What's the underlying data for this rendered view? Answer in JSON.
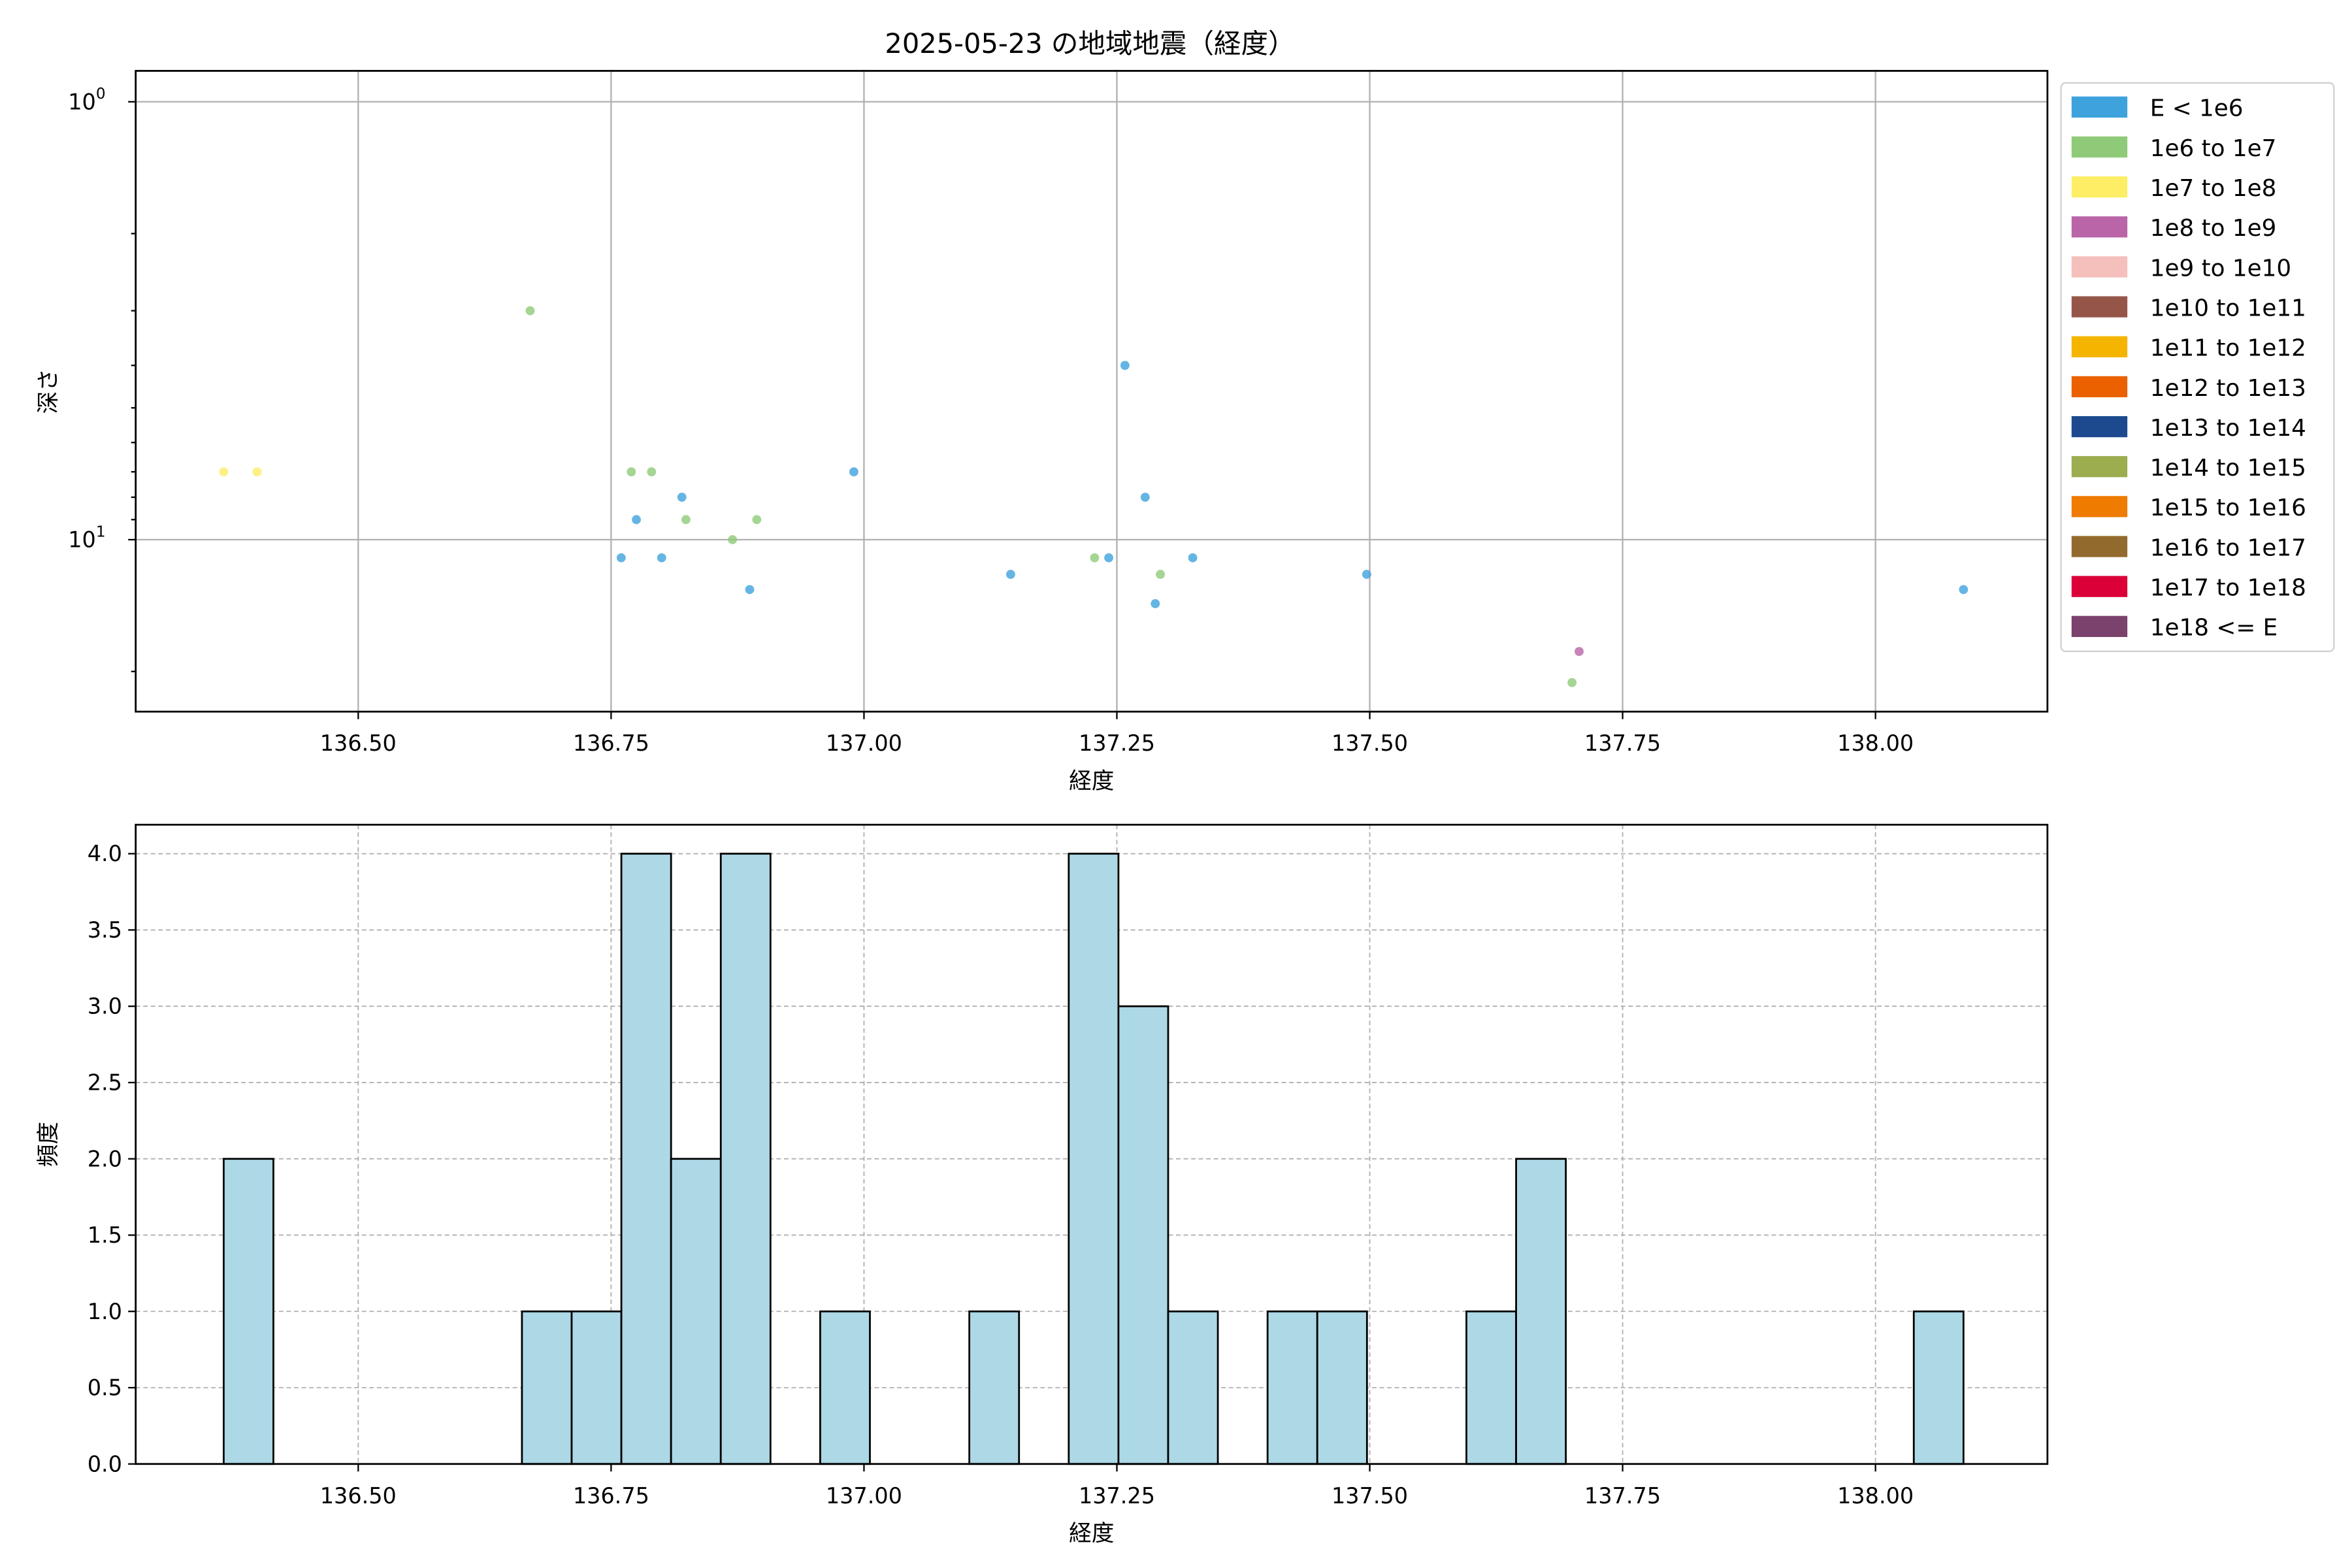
{
  "title": "2025-05-23 の地域地震（経度）",
  "chart_data": [
    {
      "type": "scatter",
      "xlabel": "経度",
      "ylabel": "深さ",
      "xlim": [
        136.28,
        138.17
      ],
      "ylim": [
        24.7,
        0.85
      ],
      "yscale": "log",
      "y_inverted": true,
      "grid": true,
      "xticks": [
        "136.50",
        "137.00",
        "137.25",
        "137.50",
        "137.75",
        "138.00",
        "136.75"
      ],
      "xtick_values": [
        136.5,
        137.0,
        137.25,
        137.5,
        137.75,
        138.0,
        136.75
      ],
      "yticks": [
        {
          "value": 1,
          "base": "10",
          "exp": "0"
        },
        {
          "value": 10,
          "base": "10",
          "exp": "1"
        }
      ],
      "legend_position": "outside-right",
      "legend": [
        {
          "label": "E < 1e6",
          "color": "#3ea3dd"
        },
        {
          "label": "1e6 to 1e7",
          "color": "#8fca78"
        },
        {
          "label": "1e7 to 1e8",
          "color": "#fdee66"
        },
        {
          "label": "1e8 to 1e9",
          "color": "#b965a8"
        },
        {
          "label": "1e9 to 1e10",
          "color": "#f5bfbb"
        },
        {
          "label": "1e10 to 1e11",
          "color": "#955649"
        },
        {
          "label": "1e11 to 1e12",
          "color": "#f5b400"
        },
        {
          "label": "1e12 to 1e13",
          "color": "#eb6100"
        },
        {
          "label": "1e13 to 1e14",
          "color": "#1d4a8e"
        },
        {
          "label": "1e14 to 1e15",
          "color": "#9bad4f"
        },
        {
          "label": "1e15 to 1e16",
          "color": "#ef7b00"
        },
        {
          "label": "1e16 to 1e17",
          "color": "#936a2e"
        },
        {
          "label": "1e17 to 1e18",
          "color": "#dc0039"
        },
        {
          "label": "1e18 <= E",
          "color": "#7a426c"
        }
      ],
      "series": [
        {
          "class": 0,
          "points": [
            [
              136.76,
              11
            ],
            [
              136.775,
              9
            ],
            [
              136.8,
              11
            ],
            [
              136.82,
              8
            ],
            [
              136.887,
              13
            ],
            [
              136.99,
              7
            ],
            [
              137.145,
              12
            ],
            [
              137.242,
              11
            ],
            [
              137.258,
              4
            ],
            [
              137.278,
              8
            ],
            [
              137.288,
              14
            ],
            [
              137.325,
              11
            ],
            [
              137.497,
              12
            ],
            [
              138.087,
              13
            ]
          ]
        },
        {
          "class": 1,
          "points": [
            [
              136.67,
              3
            ],
            [
              136.77,
              7
            ],
            [
              136.79,
              7
            ],
            [
              136.824,
              9
            ],
            [
              136.87,
              10
            ],
            [
              136.894,
              9
            ],
            [
              137.228,
              11
            ],
            [
              137.293,
              12
            ],
            [
              137.7,
              21.2
            ]
          ]
        },
        {
          "class": 2,
          "points": [
            [
              136.367,
              7
            ],
            [
              136.4,
              7
            ]
          ]
        },
        {
          "class": 3,
          "points": [
            [
              137.707,
              18
            ]
          ]
        }
      ]
    },
    {
      "type": "bar",
      "xlabel": "経度",
      "ylabel": "頻度",
      "xlim": [
        136.28,
        138.17
      ],
      "ylim": [
        0,
        4.19
      ],
      "grid": true,
      "bar_color": "#add8e6",
      "bin_start": 136.367,
      "bin_end": 138.087,
      "counts": [
        2,
        0,
        0,
        0,
        0,
        0,
        1,
        1,
        4,
        2,
        4,
        0,
        1,
        0,
        0,
        1,
        0,
        4,
        3,
        1,
        0,
        1,
        1,
        0,
        0,
        1,
        2,
        0,
        0,
        0,
        0,
        0,
        0,
        0,
        1
      ],
      "xticks": [
        "136.50",
        "136.75",
        "137.00",
        "137.25",
        "137.50",
        "137.75",
        "138.00"
      ],
      "xtick_values": [
        136.5,
        136.75,
        137.0,
        137.25,
        137.5,
        137.75,
        138.0
      ],
      "yticks": [
        "0.0",
        "0.5",
        "1.0",
        "1.5",
        "2.0",
        "2.5",
        "3.0",
        "3.5",
        "4.0"
      ],
      "ytick_values": [
        0,
        0.5,
        1,
        1.5,
        2,
        2.5,
        3,
        3.5,
        4
      ]
    }
  ]
}
